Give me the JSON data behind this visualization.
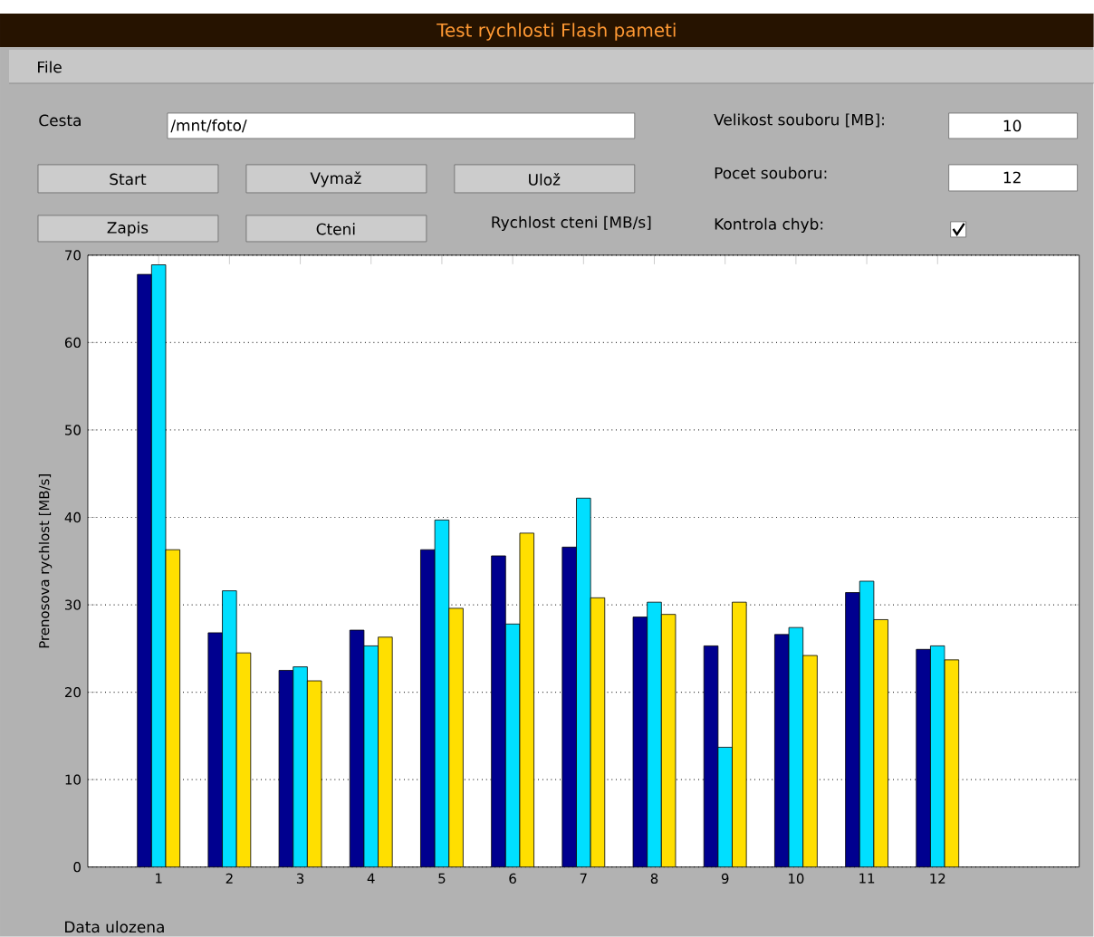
{
  "chart_data": {
    "type": "bar",
    "title": "Test rychlosti Flash pameti",
    "subtitle": "Rychlost cteni [MB/s]",
    "ylabel": "Prenosova rychlost [MB/s]",
    "x": [
      1,
      2,
      3,
      4,
      5,
      6,
      7,
      8,
      9,
      10,
      11,
      12
    ],
    "xlim": [
      0,
      14
    ],
    "xticks": [
      1,
      2,
      3,
      4,
      5,
      6,
      7,
      8,
      9,
      10,
      11,
      12
    ],
    "ylim": [
      0,
      70
    ],
    "yticks": [
      0,
      10,
      20,
      30,
      40,
      50,
      60,
      70
    ],
    "grid": "y",
    "series": [
      {
        "color": "#00008f",
        "values": [
          67.8,
          26.8,
          22.5,
          27.1,
          36.3,
          35.6,
          36.6,
          28.6,
          25.3,
          26.6,
          31.4,
          24.9
        ]
      },
      {
        "color": "#00dfff",
        "values": [
          68.9,
          31.6,
          22.9,
          25.3,
          39.7,
          27.8,
          42.2,
          30.3,
          13.7,
          27.4,
          32.7,
          25.3
        ]
      },
      {
        "color": "#ffdf00",
        "values": [
          36.3,
          24.5,
          21.3,
          26.3,
          29.6,
          38.2,
          30.8,
          28.9,
          30.3,
          24.2,
          28.3,
          23.7
        ]
      }
    ],
    "annotations": [
      "File",
      "Cesta",
      "/mnt/foto/",
      "Start",
      "Vymaž",
      "Ulož",
      "Zapis",
      "Cteni",
      "Velikost souboru [MB]:",
      "10",
      "Pocet souboru:",
      "12",
      "Kontrola chyb:",
      "Data ulozena"
    ]
  }
}
